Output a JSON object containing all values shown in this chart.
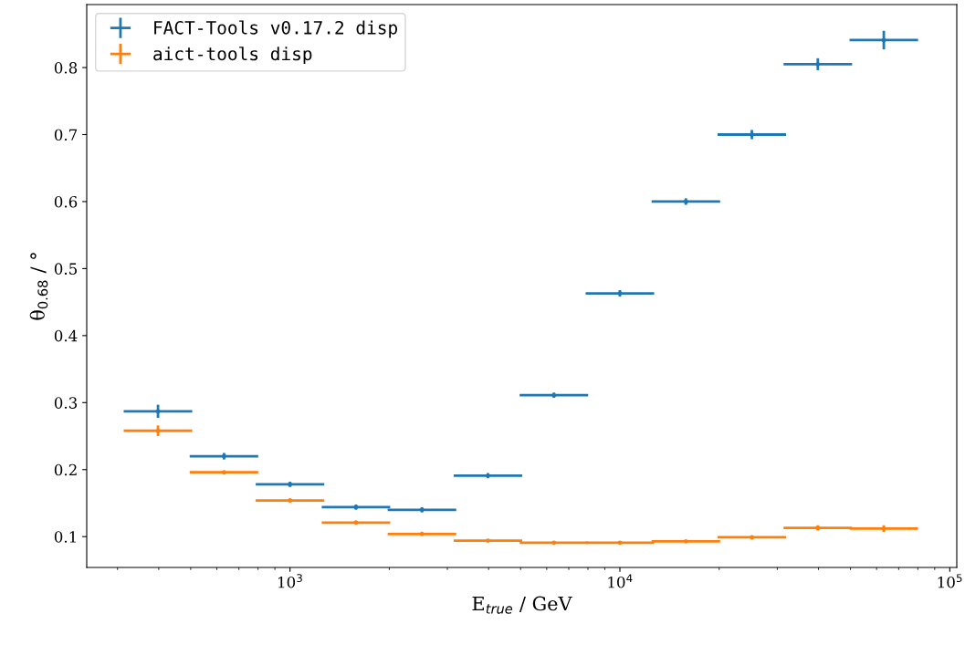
{
  "chart_data": {
    "type": "scatter",
    "xlabel": "E$_{true}$ / GeV",
    "ylabel": "θ$_{0.68}$ / °",
    "x": [
      398,
      631,
      1000,
      1585,
      2512,
      3981,
      6310,
      10000,
      15849,
      25119,
      39811,
      63096
    ],
    "series": [
      {
        "name": "FACT-Tools v0.17.2 disp",
        "color": "#1f77b4",
        "values": [
          0.287,
          0.22,
          0.178,
          0.144,
          0.14,
          0.191,
          0.311,
          0.463,
          0.6,
          0.7,
          0.805,
          0.841
        ],
        "errors": [
          0.008,
          0.003,
          0.002,
          0.002,
          0.002,
          0.002,
          0.002,
          0.003,
          0.003,
          0.005,
          0.007,
          0.012
        ],
        "xerrors": [
          [
            316,
            501
          ],
          [
            501,
            794
          ],
          [
            794,
            1259
          ],
          [
            1259,
            1995
          ],
          [
            1995,
            3162
          ],
          [
            3162,
            5012
          ],
          [
            5012,
            7943
          ],
          [
            7943,
            12589
          ],
          [
            12589,
            19953
          ],
          [
            19953,
            31623
          ],
          [
            31623,
            50119
          ],
          [
            50119,
            79433
          ]
        ]
      },
      {
        "name": "aict-tools disp",
        "color": "#ff7f0e",
        "values": [
          0.258,
          0.196,
          0.154,
          0.121,
          0.104,
          0.094,
          0.091,
          0.091,
          0.093,
          0.099,
          0.113,
          0.112
        ],
        "errors": [
          0.006,
          null,
          null,
          null,
          null,
          null,
          null,
          null,
          null,
          null,
          0.002,
          0.003
        ],
        "xerrors": [
          [
            316,
            501
          ],
          [
            501,
            794
          ],
          [
            794,
            1259
          ],
          [
            1259,
            1995
          ],
          [
            1995,
            3162
          ],
          [
            3162,
            5012
          ],
          [
            5012,
            7943
          ],
          [
            7943,
            12589
          ],
          [
            12589,
            19953
          ],
          [
            19953,
            31623
          ],
          [
            31623,
            50119
          ],
          [
            50119,
            79433
          ]
        ]
      }
    ],
    "log": "x",
    "xlim": [
      242,
      105000
    ],
    "ylim": [
      0.054,
      0.894
    ],
    "xticks": [
      {
        "value": 1000,
        "label": "10$^{3}$"
      },
      {
        "value": 10000,
        "label": "10$^{4}$"
      },
      {
        "value": 100000,
        "label": "10$^{5}$"
      }
    ],
    "yticks": [
      0.1,
      0.2,
      0.3,
      0.4,
      0.5,
      0.6,
      0.7,
      0.8
    ],
    "marker": "circle",
    "legend": "top left",
    "grid": false
  }
}
